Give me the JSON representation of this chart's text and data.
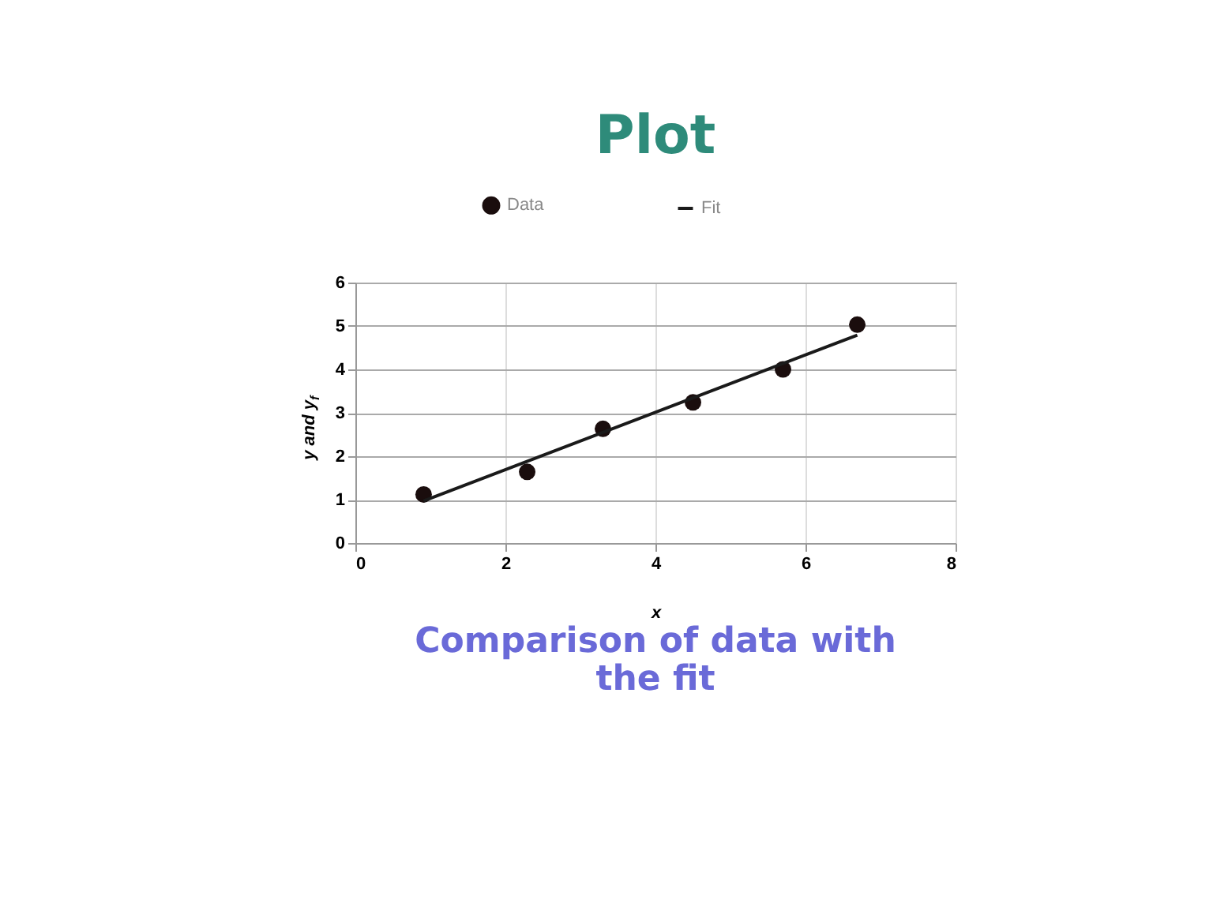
{
  "chart_data": {
    "type": "scatter",
    "title": "Plot",
    "xlabel": "x",
    "ylabel": "y and y$_{f}$",
    "annotations": [
      "Comparison of data with the fit"
    ],
    "series": [
      {
        "name": "Data",
        "color": "#1a0d0d",
        "marker": "circle",
        "x": [
          0.91,
          2.29,
          3.3,
          4.5,
          5.7,
          6.69
        ],
        "values": [
          1.12,
          1.64,
          2.63,
          3.24,
          4.0,
          5.03
        ]
      },
      {
        "name": "Fit",
        "type": "line",
        "color": "#1a1a1a",
        "line_style": "solid",
        "x": [
          0.91,
          6.69
        ],
        "values": [
          0.97,
          4.79
        ]
      }
    ],
    "xlim": [
      0,
      8
    ],
    "xticks": [
      0,
      2,
      4,
      6,
      8
    ],
    "ylim": [
      0,
      6
    ],
    "yticks": [
      0,
      1,
      2,
      3,
      4,
      5,
      6
    ],
    "grid": true,
    "legend": "top"
  }
}
